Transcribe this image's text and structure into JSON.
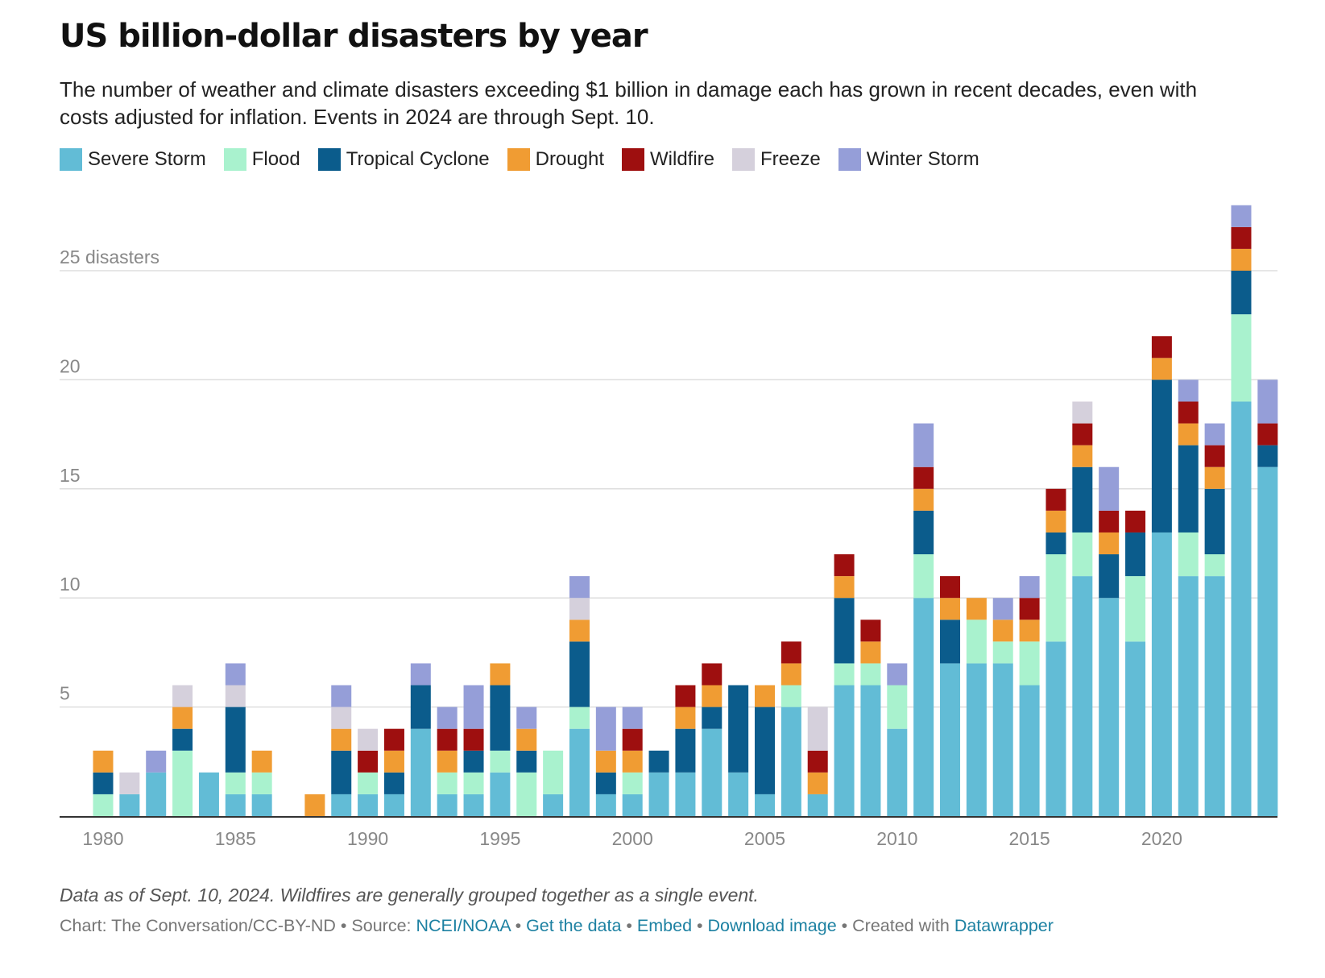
{
  "chart_data": {
    "type": "bar",
    "stacked": true,
    "title": "US billion-dollar disasters by year",
    "subtitle": "The number of weather and climate disasters exceeding $1 billion in damage each has grown in recent decades, even with costs adjusted for inflation. Events in 2024 are through Sept. 10.",
    "x": [
      1980,
      1981,
      1982,
      1983,
      1984,
      1985,
      1986,
      1987,
      1988,
      1989,
      1990,
      1991,
      1992,
      1993,
      1994,
      1995,
      1996,
      1997,
      1998,
      1999,
      2000,
      2001,
      2002,
      2003,
      2004,
      2005,
      2006,
      2007,
      2008,
      2009,
      2010,
      2011,
      2012,
      2013,
      2014,
      2015,
      2016,
      2017,
      2018,
      2019,
      2020,
      2021,
      2022,
      2023,
      2024
    ],
    "x_ticks": [
      "1980",
      "1985",
      "1990",
      "1995",
      "2000",
      "2005",
      "2010",
      "2015",
      "2020"
    ],
    "y_ticks": [
      {
        "value": 5,
        "label": "5"
      },
      {
        "value": 10,
        "label": "10"
      },
      {
        "value": 15,
        "label": "15"
      },
      {
        "value": 20,
        "label": "20"
      },
      {
        "value": 25,
        "label": "25 disasters"
      }
    ],
    "ylim": [
      0,
      28
    ],
    "grid": true,
    "legend_position": "top-left",
    "series": [
      {
        "name": "Severe Storm",
        "color": "#62bcd6",
        "values": [
          0,
          1,
          2,
          0,
          2,
          1,
          1,
          0,
          0,
          1,
          1,
          1,
          4,
          1,
          1,
          2,
          0,
          1,
          4,
          1,
          1,
          2,
          2,
          4,
          2,
          1,
          5,
          1,
          6,
          6,
          4,
          10,
          7,
          7,
          7,
          6,
          8,
          11,
          10,
          8,
          13,
          11,
          11,
          19,
          16
        ]
      },
      {
        "name": "Flood",
        "color": "#a9f2ce",
        "values": [
          1,
          0,
          0,
          3,
          0,
          1,
          1,
          0,
          0,
          0,
          1,
          0,
          0,
          1,
          1,
          1,
          2,
          2,
          1,
          0,
          1,
          0,
          0,
          0,
          0,
          0,
          1,
          0,
          1,
          1,
          2,
          2,
          0,
          2,
          1,
          2,
          4,
          2,
          0,
          3,
          0,
          2,
          1,
          4,
          0
        ]
      },
      {
        "name": "Tropical Cyclone",
        "color": "#0b5c8c",
        "values": [
          1,
          0,
          0,
          1,
          0,
          3,
          0,
          0,
          0,
          2,
          0,
          1,
          2,
          0,
          1,
          3,
          1,
          0,
          3,
          1,
          0,
          1,
          2,
          1,
          4,
          4,
          0,
          0,
          3,
          0,
          0,
          2,
          2,
          0,
          0,
          0,
          1,
          3,
          2,
          2,
          7,
          4,
          3,
          2,
          1
        ]
      },
      {
        "name": "Drought",
        "color": "#f09c33",
        "values": [
          1,
          0,
          0,
          1,
          0,
          0,
          1,
          0,
          1,
          1,
          0,
          1,
          0,
          1,
          0,
          1,
          1,
          0,
          1,
          1,
          1,
          0,
          1,
          1,
          0,
          1,
          1,
          1,
          1,
          1,
          0,
          1,
          1,
          1,
          1,
          1,
          1,
          1,
          1,
          0,
          1,
          1,
          1,
          1,
          0
        ]
      },
      {
        "name": "Wildfire",
        "color": "#9e0f0f",
        "values": [
          0,
          0,
          0,
          0,
          0,
          0,
          0,
          0,
          0,
          0,
          1,
          1,
          0,
          1,
          1,
          0,
          0,
          0,
          0,
          0,
          1,
          0,
          1,
          1,
          0,
          0,
          1,
          1,
          1,
          1,
          0,
          1,
          1,
          0,
          0,
          1,
          1,
          1,
          1,
          1,
          1,
          1,
          1,
          1,
          1
        ]
      },
      {
        "name": "Freeze",
        "color": "#d5d0dc",
        "values": [
          0,
          1,
          0,
          1,
          0,
          1,
          0,
          0,
          0,
          1,
          1,
          0,
          0,
          0,
          0,
          0,
          0,
          0,
          1,
          0,
          0,
          0,
          0,
          0,
          0,
          0,
          0,
          2,
          0,
          0,
          0,
          0,
          0,
          0,
          0,
          0,
          0,
          1,
          0,
          0,
          0,
          0,
          0,
          0,
          0
        ]
      },
      {
        "name": "Winter Storm",
        "color": "#959ed8",
        "values": [
          0,
          0,
          1,
          0,
          0,
          1,
          0,
          0,
          0,
          1,
          0,
          0,
          1,
          1,
          2,
          0,
          1,
          0,
          1,
          2,
          1,
          0,
          0,
          0,
          0,
          0,
          0,
          0,
          0,
          0,
          1,
          2,
          0,
          0,
          1,
          1,
          0,
          0,
          2,
          0,
          0,
          1,
          1,
          1,
          2
        ]
      }
    ]
  },
  "notes": "Data as of Sept. 10, 2024. Wildfires are generally grouped together as a single event.",
  "footer": {
    "chart_credit": "Chart: The Conversation/CC-BY-ND",
    "sep1": " • Source: ",
    "source_link": "NCEI/NOAA",
    "sep2": " • ",
    "get_data": "Get the data",
    "sep3": " • ",
    "embed": "Embed",
    "sep4": "  • ",
    "download": "Download image",
    "sep5": " • Created with ",
    "datawrapper": "Datawrapper"
  }
}
